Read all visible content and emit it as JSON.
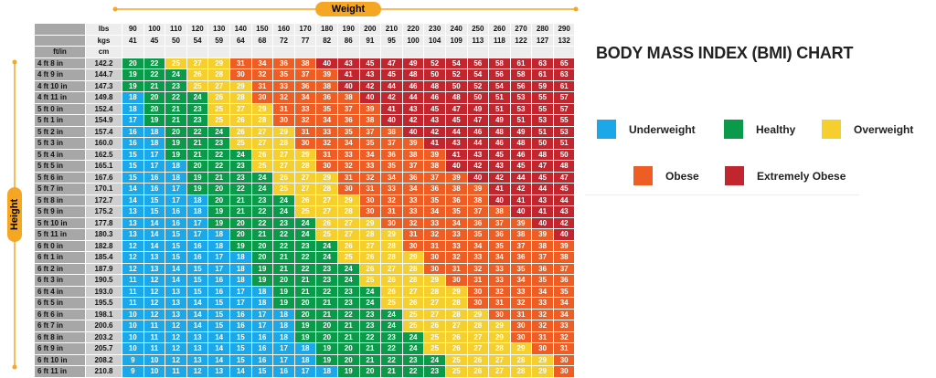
{
  "chart_data": {
    "type": "table",
    "title": "BODY MASS INDEX (BMI) CHART",
    "x_axis_label": "Weight",
    "y_axis_label": "Height",
    "header_labels": {
      "lbs": "lbs",
      "kgs": "kgs",
      "ft_in": "ft/in",
      "cm": "cm"
    },
    "weights_lbs": [
      "90",
      "100",
      "110",
      "120",
      "130",
      "140",
      "150",
      "160",
      "170",
      "180",
      "190",
      "200",
      "210",
      "220",
      "230",
      "240",
      "250",
      "260",
      "270",
      "280",
      "290"
    ],
    "weights_kgs": [
      "41",
      "45",
      "50",
      "54",
      "59",
      "64",
      "68",
      "72",
      "77",
      "82",
      "86",
      "91",
      "95",
      "100",
      "104",
      "109",
      "113",
      "118",
      "122",
      "127",
      "132"
    ],
    "rows": [
      {
        "ft": "4 ft 8 in",
        "cm": "142.2",
        "bmi": [
          20,
          22,
          25,
          27,
          29,
          31,
          34,
          36,
          38,
          40,
          43,
          45,
          47,
          49,
          52,
          54,
          56,
          58,
          61,
          63,
          65
        ]
      },
      {
        "ft": "4 ft 9 in",
        "cm": "144.7",
        "bmi": [
          19,
          22,
          24,
          26,
          28,
          30,
          32,
          35,
          37,
          39,
          41,
          43,
          45,
          48,
          50,
          52,
          54,
          56,
          58,
          61,
          63
        ]
      },
      {
        "ft": "4 ft 10 in",
        "cm": "147.3",
        "bmi": [
          19,
          21,
          23,
          25,
          27,
          29,
          31,
          33,
          36,
          38,
          40,
          42,
          44,
          46,
          48,
          50,
          52,
          54,
          56,
          59,
          61
        ]
      },
      {
        "ft": "4 ft 11 in",
        "cm": "149.8",
        "bmi": [
          18,
          20,
          22,
          24,
          26,
          28,
          30,
          32,
          34,
          36,
          38,
          40,
          42,
          44,
          46,
          48,
          50,
          51,
          53,
          55,
          57
        ]
      },
      {
        "ft": "5 ft 0 in",
        "cm": "152.4",
        "bmi": [
          18,
          20,
          21,
          23,
          25,
          27,
          29,
          31,
          33,
          35,
          37,
          39,
          41,
          43,
          45,
          47,
          49,
          51,
          53,
          55,
          57
        ]
      },
      {
        "ft": "5 ft 1 in",
        "cm": "154.9",
        "bmi": [
          17,
          19,
          21,
          23,
          25,
          26,
          28,
          30,
          32,
          34,
          36,
          38,
          40,
          42,
          43,
          45,
          47,
          49,
          51,
          53,
          55
        ]
      },
      {
        "ft": "5 ft 2 in",
        "cm": "157.4",
        "bmi": [
          16,
          18,
          20,
          22,
          24,
          26,
          27,
          29,
          31,
          33,
          35,
          37,
          38,
          40,
          42,
          44,
          46,
          48,
          49,
          51,
          53
        ]
      },
      {
        "ft": "5 ft 3 in",
        "cm": "160.0",
        "bmi": [
          16,
          18,
          19,
          21,
          23,
          25,
          27,
          28,
          30,
          32,
          34,
          35,
          37,
          39,
          41,
          43,
          44,
          46,
          48,
          50,
          51
        ]
      },
      {
        "ft": "5 ft 4 in",
        "cm": "162.5",
        "bmi": [
          15,
          17,
          19,
          21,
          22,
          24,
          26,
          27,
          29,
          31,
          33,
          34,
          36,
          38,
          39,
          41,
          43,
          45,
          46,
          48,
          50
        ]
      },
      {
        "ft": "5 ft 5 in",
        "cm": "165.1",
        "bmi": [
          15,
          17,
          18,
          20,
          22,
          23,
          25,
          27,
          28,
          30,
          32,
          33,
          35,
          37,
          38,
          40,
          42,
          43,
          45,
          47,
          48
        ]
      },
      {
        "ft": "5 ft 6 in",
        "cm": "167.6",
        "bmi": [
          15,
          16,
          18,
          19,
          21,
          23,
          24,
          26,
          27,
          29,
          31,
          32,
          34,
          36,
          37,
          39,
          40,
          42,
          44,
          45,
          47
        ]
      },
      {
        "ft": "5 ft 7 in",
        "cm": "170.1",
        "bmi": [
          14,
          16,
          17,
          19,
          20,
          22,
          24,
          25,
          27,
          28,
          30,
          31,
          33,
          34,
          36,
          38,
          39,
          41,
          42,
          44,
          45
        ]
      },
      {
        "ft": "5 ft 8 in",
        "cm": "172.7",
        "bmi": [
          14,
          15,
          17,
          18,
          20,
          21,
          23,
          24,
          26,
          27,
          29,
          30,
          32,
          33,
          35,
          36,
          38,
          40,
          41,
          43,
          44
        ]
      },
      {
        "ft": "5 ft 9 in",
        "cm": "175.2",
        "bmi": [
          13,
          15,
          16,
          18,
          19,
          21,
          22,
          24,
          25,
          27,
          28,
          30,
          31,
          33,
          34,
          35,
          37,
          38,
          40,
          41,
          43
        ]
      },
      {
        "ft": "5 ft 10 in",
        "cm": "177.8",
        "bmi": [
          13,
          14,
          16,
          17,
          19,
          20,
          22,
          23,
          24,
          26,
          27,
          29,
          30,
          32,
          33,
          34,
          36,
          37,
          39,
          40,
          42
        ]
      },
      {
        "ft": "5 ft 11 in",
        "cm": "180.3",
        "bmi": [
          13,
          14,
          15,
          17,
          18,
          20,
          21,
          22,
          24,
          25,
          27,
          28,
          29,
          31,
          32,
          33,
          35,
          36,
          38,
          39,
          40
        ]
      },
      {
        "ft": "6 ft 0 in",
        "cm": "182.8",
        "bmi": [
          12,
          14,
          15,
          16,
          18,
          19,
          20,
          22,
          23,
          24,
          26,
          27,
          28,
          30,
          31,
          33,
          34,
          35,
          37,
          38,
          39
        ]
      },
      {
        "ft": "6 ft 1 in",
        "cm": "185.4",
        "bmi": [
          12,
          13,
          15,
          16,
          17,
          18,
          20,
          21,
          22,
          24,
          25,
          26,
          28,
          29,
          30,
          32,
          33,
          34,
          36,
          37,
          38
        ]
      },
      {
        "ft": "6 ft 2 in",
        "cm": "187.9",
        "bmi": [
          12,
          13,
          14,
          15,
          17,
          18,
          19,
          21,
          22,
          23,
          24,
          26,
          27,
          28,
          30,
          31,
          32,
          33,
          35,
          36,
          37
        ]
      },
      {
        "ft": "6 ft 3 in",
        "cm": "190.5",
        "bmi": [
          11,
          12,
          14,
          15,
          16,
          18,
          19,
          20,
          21,
          23,
          24,
          25,
          26,
          28,
          29,
          30,
          31,
          33,
          34,
          35,
          36
        ]
      },
      {
        "ft": "6 ft 4 in",
        "cm": "193.0",
        "bmi": [
          11,
          12,
          13,
          15,
          16,
          17,
          18,
          19,
          21,
          22,
          23,
          24,
          26,
          27,
          28,
          29,
          30,
          32,
          33,
          34,
          35
        ]
      },
      {
        "ft": "6 ft 5 in",
        "cm": "195.5",
        "bmi": [
          11,
          12,
          13,
          14,
          15,
          17,
          18,
          19,
          20,
          21,
          23,
          24,
          25,
          26,
          27,
          28,
          30,
          31,
          32,
          33,
          34
        ]
      },
      {
        "ft": "6 ft 6 in",
        "cm": "198.1",
        "bmi": [
          10,
          12,
          13,
          14,
          15,
          16,
          17,
          18,
          20,
          21,
          22,
          23,
          24,
          25,
          27,
          28,
          29,
          30,
          31,
          32,
          34
        ]
      },
      {
        "ft": "6 ft 7 in",
        "cm": "200.6",
        "bmi": [
          10,
          11,
          12,
          14,
          15,
          16,
          17,
          18,
          19,
          20,
          21,
          23,
          24,
          25,
          26,
          27,
          28,
          29,
          30,
          32,
          33
        ]
      },
      {
        "ft": "6 ft 8 in",
        "cm": "203.2",
        "bmi": [
          10,
          11,
          12,
          13,
          14,
          15,
          16,
          18,
          19,
          20,
          21,
          22,
          23,
          24,
          25,
          26,
          27,
          29,
          30,
          31,
          32
        ]
      },
      {
        "ft": "6 ft 9 in",
        "cm": "205.7",
        "bmi": [
          10,
          11,
          12,
          13,
          14,
          15,
          16,
          17,
          18,
          19,
          20,
          21,
          22,
          24,
          25,
          26,
          27,
          28,
          29,
          30,
          31
        ]
      },
      {
        "ft": "6 ft 10 in",
        "cm": "208.2",
        "bmi": [
          9,
          10,
          12,
          13,
          14,
          15,
          16,
          17,
          18,
          19,
          20,
          21,
          22,
          23,
          24,
          25,
          26,
          27,
          28,
          29,
          30
        ]
      },
      {
        "ft": "6 ft 11 in",
        "cm": "210.8",
        "bmi": [
          9,
          10,
          11,
          12,
          13,
          14,
          15,
          16,
          17,
          18,
          19,
          20,
          21,
          22,
          23,
          25,
          26,
          27,
          28,
          29,
          30
        ]
      }
    ],
    "categories": [
      {
        "name": "Underweight",
        "color": "#1ba7e8",
        "range": [
          0,
          18
        ]
      },
      {
        "name": "Healthy",
        "color": "#0a9a4a",
        "range": [
          19,
          24
        ]
      },
      {
        "name": "Overweight",
        "color": "#f5cf2e",
        "range": [
          25,
          29
        ]
      },
      {
        "name": "Obese",
        "color": "#ee5d23",
        "range": [
          30,
          39
        ]
      },
      {
        "name": "Extremely Obese",
        "color": "#c1262e",
        "range": [
          40,
          100
        ]
      }
    ]
  },
  "colors": {
    "accent": "#f5a623",
    "header_gray": "#a7a7a7",
    "light_gray": "#ededed"
  }
}
